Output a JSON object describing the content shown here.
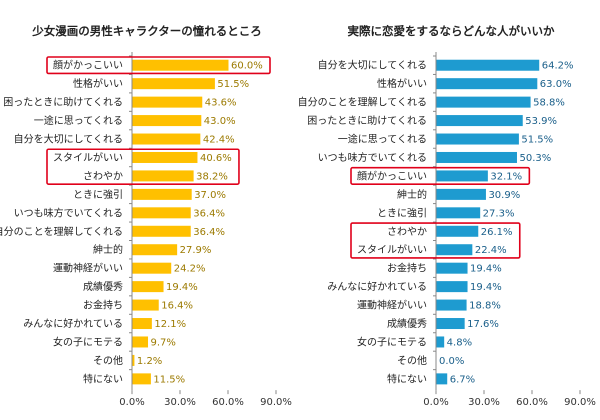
{
  "chart_data": [
    {
      "type": "bar",
      "orientation": "horizontal",
      "title": "少女漫画の男性キャラクターの憧れるところ",
      "categories": [
        "顔がかっこいい",
        "性格がいい",
        "困ったときに助けてくれる",
        "一途に思ってくれる",
        "自分を大切にしてくれる",
        "スタイルがいい",
        "さわやか",
        "ときに強引",
        "いつも味方でいてくれる",
        "自分のことを理解してくれる",
        "紳士的",
        "運動神経がいい",
        "成績優秀",
        "お金持ち",
        "みんなに好かれている",
        "女の子にモテる",
        "その他",
        "特にない"
      ],
      "values": [
        60.0,
        51.5,
        43.6,
        43.0,
        42.4,
        40.6,
        38.2,
        37.0,
        36.4,
        36.4,
        27.9,
        24.2,
        19.4,
        16.4,
        12.1,
        9.7,
        1.2,
        11.5
      ],
      "value_labels": [
        "60.0%",
        "51.5%",
        "43.6%",
        "43.0%",
        "42.4%",
        "40.6%",
        "38.2%",
        "37.0%",
        "36.4%",
        "36.4%",
        "27.9%",
        "24.2%",
        "19.4%",
        "16.4%",
        "12.1%",
        "9.7%",
        "1.2%",
        "11.5%"
      ],
      "highlighted_categories": [
        "顔がかっこいい",
        "スタイルがいい",
        "さわやか"
      ],
      "xlim": [
        0,
        90
      ],
      "xticks": [
        "0.0%",
        "30.0%",
        "60.0%",
        "90.0%"
      ],
      "bar_color": "#FFC000",
      "label_color": "#9C7A00",
      "highlight_color": "#E0001A",
      "grid": false
    },
    {
      "type": "bar",
      "orientation": "horizontal",
      "title": "実際に恋愛をするならどんな人がいいか",
      "categories": [
        "自分を大切にしてくれる",
        "性格がいい",
        "自分のことを理解してくれる",
        "困ったときに助けてくれる",
        "一途に思ってくれる",
        "いつも味方でいてくれる",
        "顔がかっこいい",
        "紳士的",
        "ときに強引",
        "さわやか",
        "スタイルがいい",
        "お金持ち",
        "みんなに好かれている",
        "運動神経がいい",
        "成績優秀",
        "女の子にモテる",
        "その他",
        "特にない"
      ],
      "values": [
        64.2,
        63.0,
        58.8,
        53.9,
        51.5,
        50.3,
        32.1,
        30.9,
        27.3,
        26.1,
        22.4,
        19.4,
        19.4,
        18.8,
        17.6,
        4.8,
        0.0,
        6.7
      ],
      "value_labels": [
        "64.2%",
        "63.0%",
        "58.8%",
        "53.9%",
        "51.5%",
        "50.3%",
        "32.1%",
        "30.9%",
        "27.3%",
        "26.1%",
        "22.4%",
        "19.4%",
        "19.4%",
        "18.8%",
        "17.6%",
        "4.8%",
        "0.0%",
        "6.7%"
      ],
      "highlighted_categories": [
        "顔がかっこいい",
        "さわやか",
        "スタイルがいい"
      ],
      "xlim": [
        0,
        90
      ],
      "xticks": [
        "0.0%",
        "30.0%",
        "60.0%",
        "90.0%"
      ],
      "bar_color": "#1E9BD0",
      "label_color": "#1A5F8A",
      "highlight_color": "#E0001A",
      "grid": false
    }
  ]
}
